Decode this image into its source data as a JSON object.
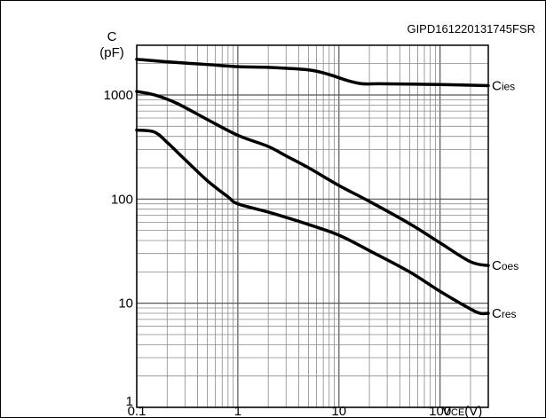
{
  "figure_id": "GIPD161220131745FSR",
  "chart_data": {
    "type": "line",
    "x_scale": "log",
    "y_scale": "log",
    "xlim": [
      0.1,
      300
    ],
    "ylim": [
      1,
      3000
    ],
    "grid": true,
    "ylabel_line1": "C",
    "ylabel_line2": "(pF)",
    "xlabel_main": "V",
    "xlabel_sub": "CE",
    "xlabel_unit": "(V)",
    "x_ticks": [
      {
        "value": 0.1,
        "label": "0.1"
      },
      {
        "value": 1,
        "label": "1"
      },
      {
        "value": 10,
        "label": "10"
      },
      {
        "value": 100,
        "label": "100"
      }
    ],
    "y_ticks": [
      {
        "value": 1,
        "label": "1"
      },
      {
        "value": 10,
        "label": "10"
      },
      {
        "value": 100,
        "label": "100"
      },
      {
        "value": 1000,
        "label": "1000"
      }
    ],
    "series": [
      {
        "name": "Cies",
        "label_main": "C",
        "label_sub": "ies",
        "x": [
          0.1,
          0.2,
          0.5,
          1,
          2,
          5,
          8,
          12,
          17,
          25,
          50,
          100,
          200,
          300
        ],
        "y": [
          2200,
          2080,
          1960,
          1870,
          1840,
          1740,
          1570,
          1380,
          1280,
          1280,
          1270,
          1260,
          1240,
          1230
        ]
      },
      {
        "name": "Coes",
        "label_main": "C",
        "label_sub": "oes",
        "x": [
          0.1,
          0.15,
          0.25,
          0.5,
          1,
          2,
          3,
          5,
          10,
          20,
          50,
          100,
          200,
          300
        ],
        "y": [
          1080,
          1000,
          830,
          580,
          410,
          320,
          260,
          200,
          135,
          95,
          58,
          38,
          25,
          23
        ]
      },
      {
        "name": "Cres",
        "label_main": "C",
        "label_sub": "res",
        "x": [
          0.1,
          0.15,
          0.2,
          0.3,
          0.5,
          0.8,
          1,
          2,
          5,
          10,
          20,
          50,
          100,
          200,
          250,
          300
        ],
        "y": [
          460,
          440,
          350,
          240,
          150,
          105,
          90,
          75,
          57,
          45,
          32,
          20,
          13,
          8.8,
          8,
          8
        ]
      }
    ]
  }
}
